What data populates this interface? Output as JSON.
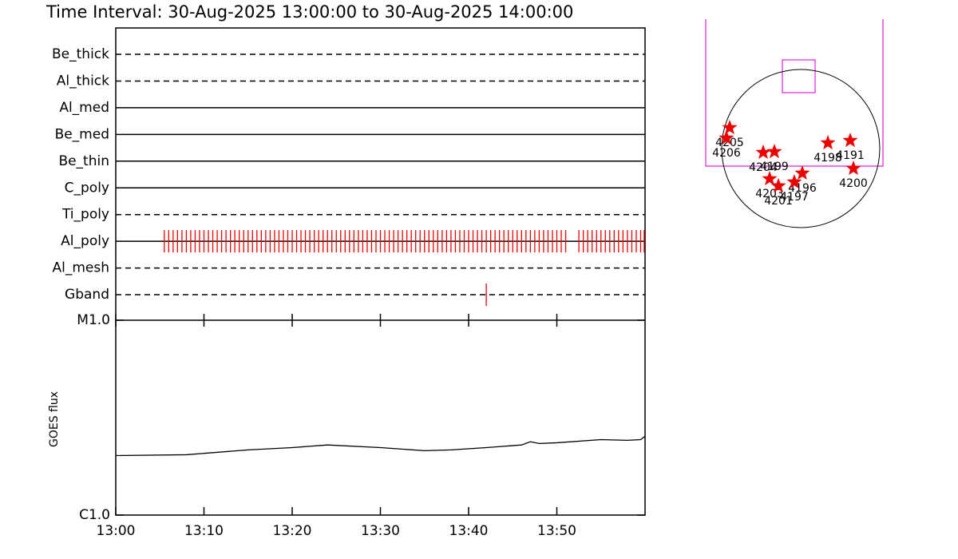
{
  "chart_data": [
    {
      "type": "filters",
      "title": "Time Interval: 30-Aug-2025 13:00:00 to 30-Aug-2025 14:00:00",
      "categories": [
        "Be_thick",
        "Al_thick",
        "Al_med",
        "Be_med",
        "Be_thin",
        "C_poly",
        "Ti_poly",
        "Al_poly",
        "Al_mesh",
        "Gband"
      ],
      "styles": [
        "dashed",
        "dashed",
        "solid",
        "solid",
        "solid",
        "solid",
        "dashed",
        "solid",
        "dashed",
        "dashed"
      ],
      "xlim": [
        0,
        60
      ],
      "series": [
        {
          "name": "Al_poly",
          "color": "#ee0000",
          "row": 7,
          "x": [
            5.5,
            6,
            6.5,
            7,
            7.5,
            8,
            8.5,
            9,
            9.5,
            10,
            10.5,
            11,
            11.5,
            12,
            12.5,
            13,
            13.5,
            14,
            14.5,
            15,
            15.5,
            16,
            16.5,
            17,
            17.5,
            18,
            18.5,
            19,
            19.5,
            20,
            20.5,
            21,
            21.5,
            22,
            22.5,
            23,
            23.5,
            24,
            24.5,
            25,
            25.5,
            26,
            26.5,
            27,
            27.5,
            28,
            28.5,
            29,
            29.5,
            30,
            30.5,
            31,
            31.5,
            32,
            32.5,
            33,
            33.5,
            34,
            34.5,
            35,
            35.5,
            36,
            36.5,
            37,
            37.5,
            38,
            38.5,
            39,
            39.5,
            40,
            40.5,
            41,
            41.5,
            42,
            42.5,
            43,
            43.5,
            44,
            44.5,
            45,
            45.5,
            46,
            46.5,
            47,
            47.5,
            48,
            48.5,
            49,
            49.5,
            50,
            50.5,
            51,
            52.5,
            53,
            53.5,
            54,
            54.5,
            55,
            55.5,
            56,
            56.5,
            57,
            57.5,
            58,
            58.5,
            59,
            59.5,
            59.9
          ]
        },
        {
          "name": "Gband",
          "color": "#ee0000",
          "row": 9,
          "x": [
            42
          ]
        }
      ]
    },
    {
      "type": "line",
      "ylabel": "GOES flux",
      "log_scale": true,
      "color": "#000000",
      "x": [
        0,
        8,
        15,
        20,
        24,
        30,
        35,
        38,
        42,
        46,
        47,
        48,
        50,
        55,
        58,
        59.5,
        60
      ],
      "values": [
        2.02e-06,
        2.04e-06,
        2.16e-06,
        2.22e-06,
        2.29e-06,
        2.22e-06,
        2.14e-06,
        2.16e-06,
        2.22e-06,
        2.29e-06,
        2.38e-06,
        2.33e-06,
        2.35e-06,
        2.44e-06,
        2.42e-06,
        2.44e-06,
        2.54e-06
      ],
      "xlim": [
        0,
        60
      ],
      "xticks": [
        {
          "value": 0,
          "label": "13:00"
        },
        {
          "value": 10,
          "label": "13:10"
        },
        {
          "value": 20,
          "label": "13:20"
        },
        {
          "value": 30,
          "label": "13:30"
        },
        {
          "value": 40,
          "label": "13:40"
        },
        {
          "value": 50,
          "label": "13:50"
        }
      ],
      "ylim": [
        1e-06,
        1e-05
      ],
      "yticks": [
        {
          "value": 1e-06,
          "label": "C1.0"
        },
        {
          "value": 1e-05,
          "label": "M1.0"
        }
      ]
    },
    {
      "type": "sun-map",
      "color": "#ee0000",
      "sun_radius": 960,
      "points": [
        {
          "label": "4205",
          "x": -863,
          "y": 252
        },
        {
          "label": "4206",
          "x": -902,
          "y": 126
        },
        {
          "label": "4204",
          "x": -456,
          "y": -48
        },
        {
          "label": "4199",
          "x": -320,
          "y": -39
        },
        {
          "label": "4198",
          "x": 330,
          "y": 68
        },
        {
          "label": "4191",
          "x": 601,
          "y": 97
        },
        {
          "label": "4200",
          "x": 640,
          "y": -242
        },
        {
          "label": "4196",
          "x": 19,
          "y": -300
        },
        {
          "label": "4197",
          "x": -78,
          "y": -407
        },
        {
          "label": "4203",
          "x": -378,
          "y": -368
        },
        {
          "label": "4201",
          "x": -271,
          "y": -455
        }
      ]
    }
  ]
}
